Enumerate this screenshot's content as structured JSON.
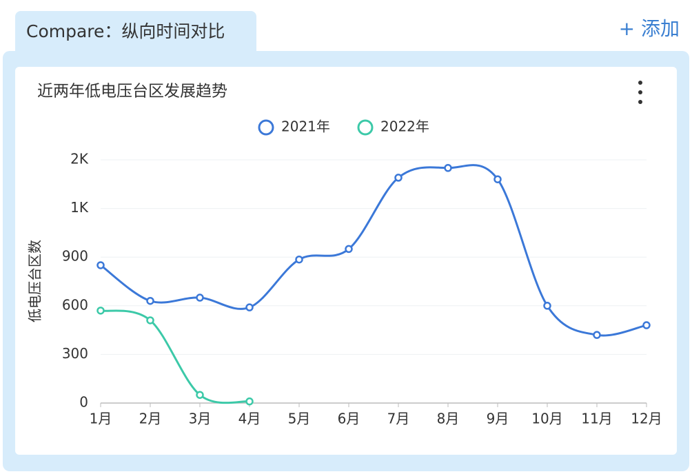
{
  "tab": {
    "label": "Compare：纵向时间对比"
  },
  "add_button": {
    "label": "+ 添加"
  },
  "chart_data": {
    "type": "line",
    "title": "近两年低电压台区发展趋势",
    "y_axis_label": "低电压台区数",
    "categories": [
      "1月",
      "2月",
      "3月",
      "4月",
      "5月",
      "6月",
      "7月",
      "8月",
      "9月",
      "10月",
      "11月",
      "12月"
    ],
    "series": [
      {
        "name": "2021年",
        "color": "#3b78d8",
        "values": [
          850,
          630,
          650,
          590,
          885,
          950,
          1390,
          1450,
          1380,
          600,
          420,
          480
        ]
      },
      {
        "name": "2022年",
        "color": "#3cc9a8",
        "values": [
          570,
          510,
          50,
          10,
          null,
          null,
          null,
          null,
          null,
          null,
          null,
          null
        ]
      }
    ],
    "ylim": [
      0,
      1500
    ],
    "yticks": [
      0,
      300,
      600,
      900,
      {
        "value": 1200,
        "label": "1K"
      },
      {
        "value": 1500,
        "label": "2K"
      }
    ],
    "grid": true,
    "smooth": true,
    "legend": "top"
  }
}
